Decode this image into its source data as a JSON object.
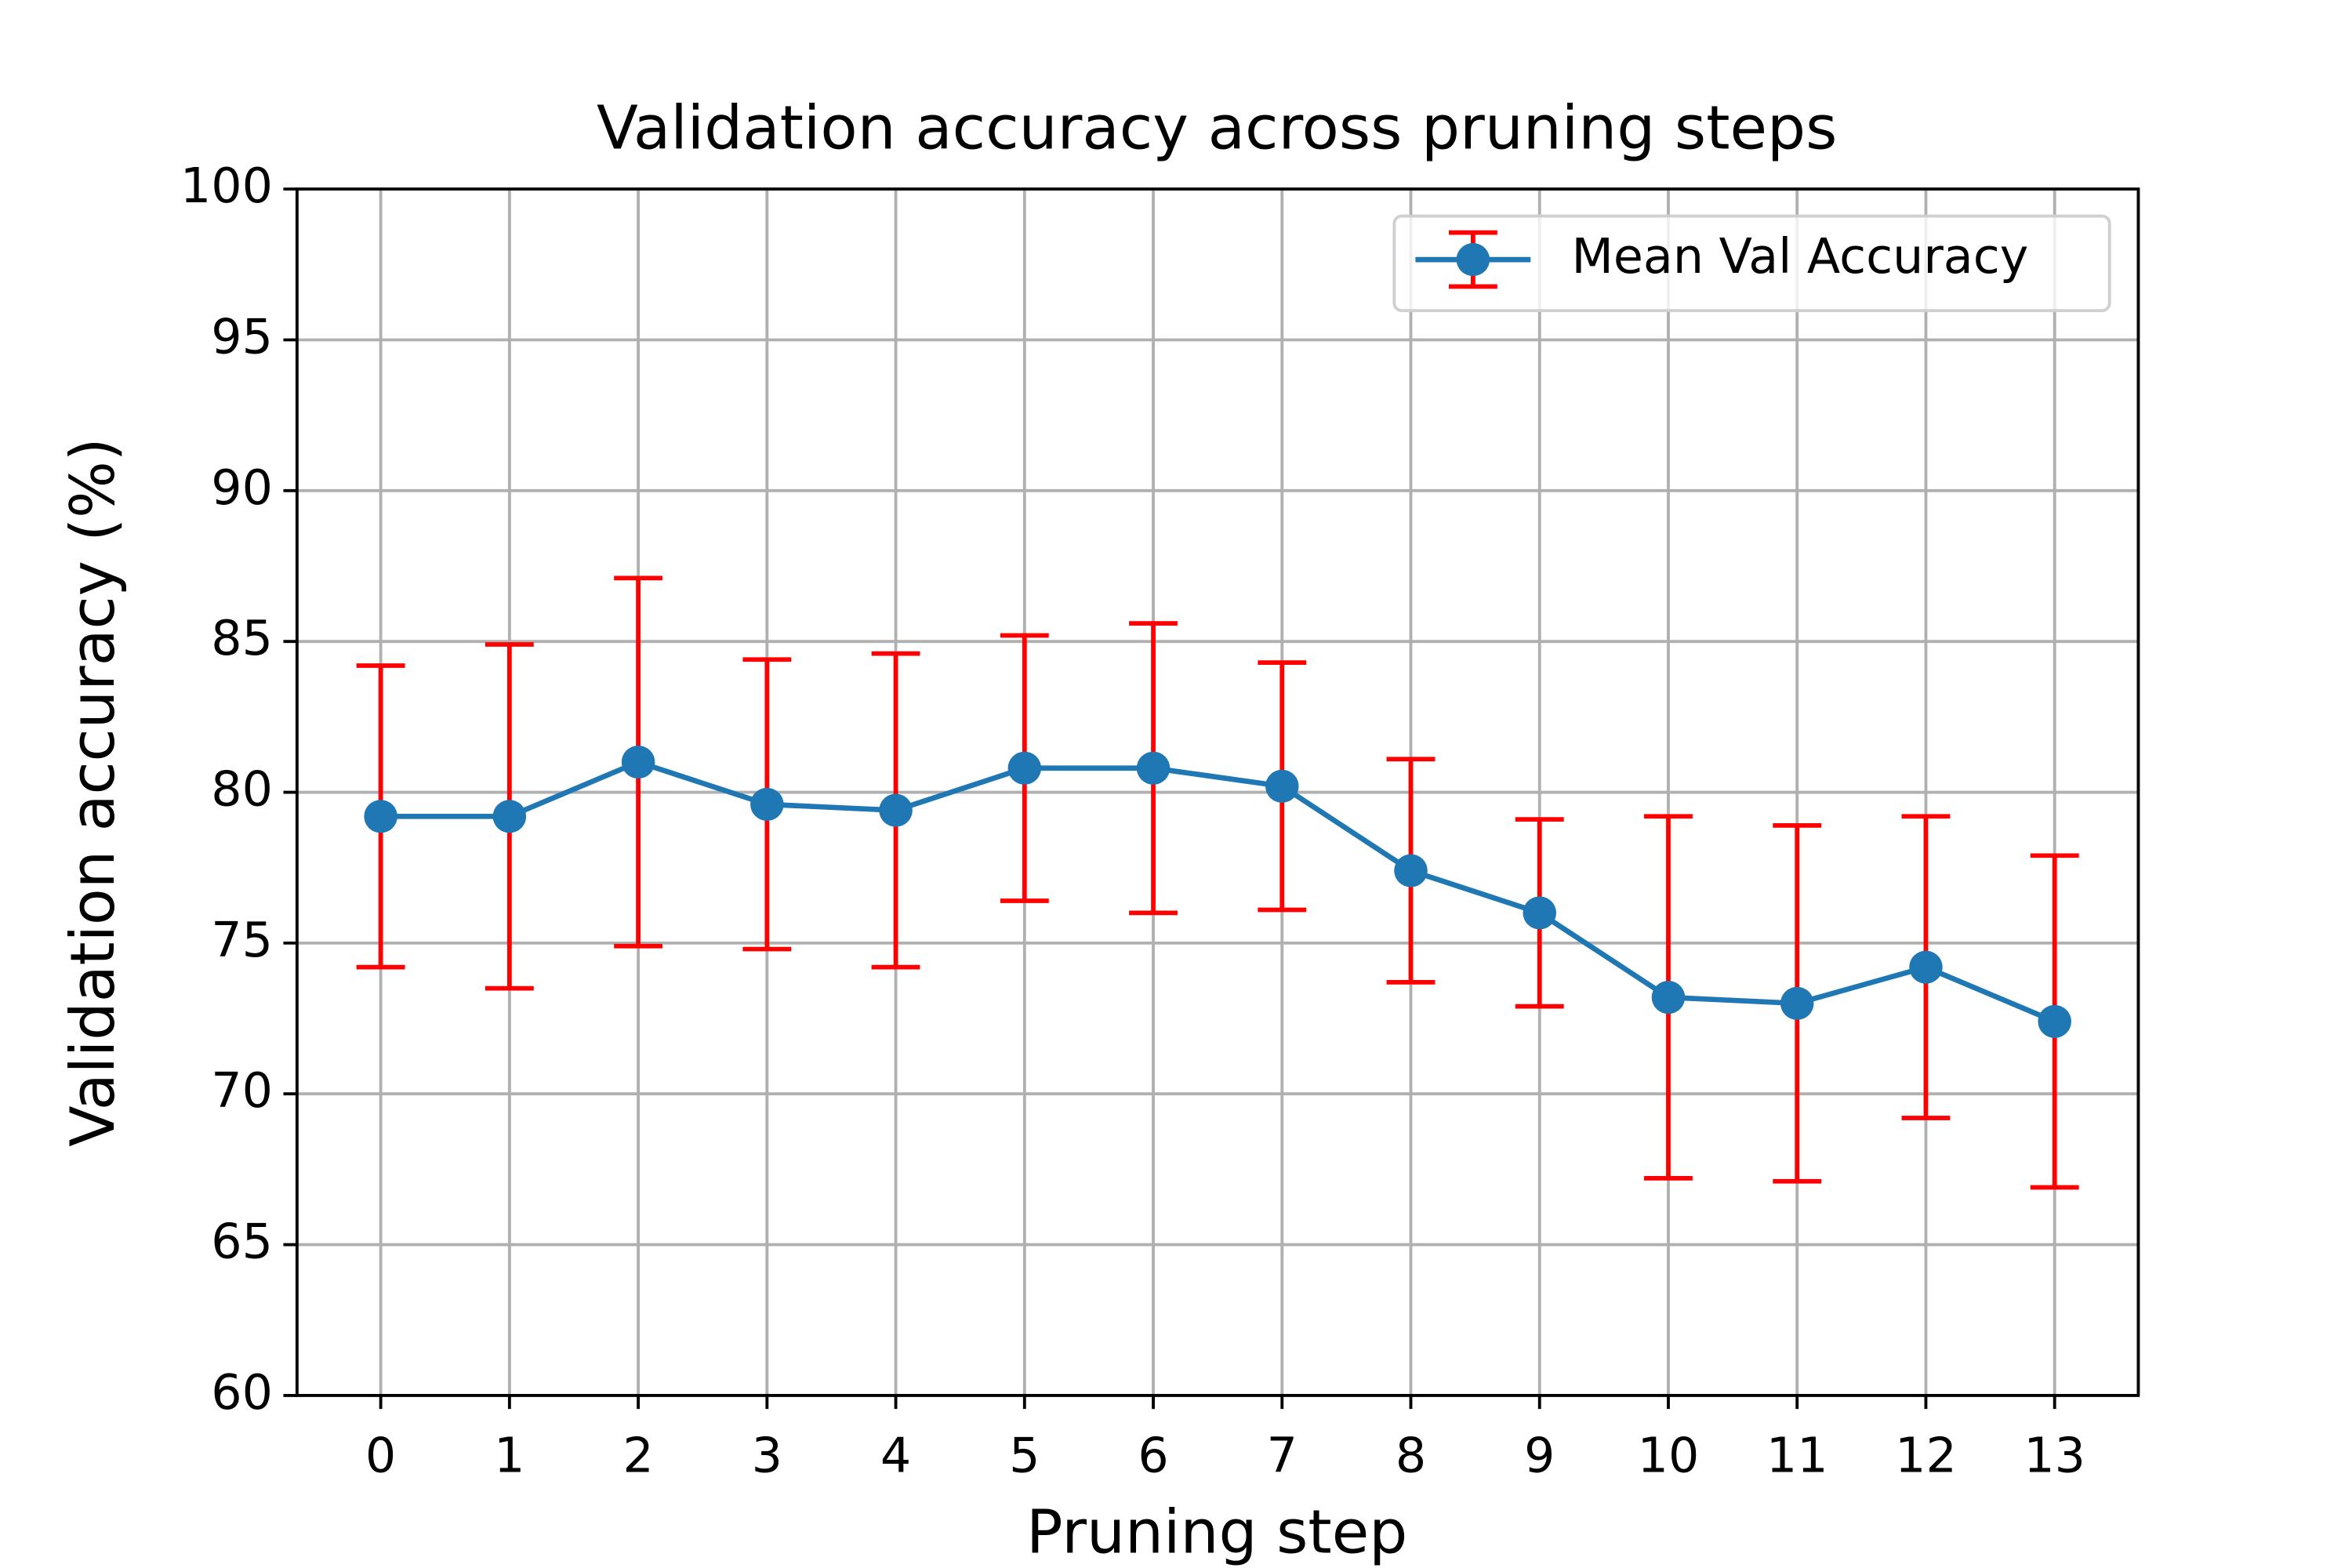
{
  "chart_data": {
    "type": "line",
    "title": "Validation accuracy across pruning steps",
    "x_label": "Pruning step",
    "y_label": "Validation accuracy (%)",
    "x": [
      0,
      1,
      2,
      3,
      4,
      5,
      6,
      7,
      8,
      9,
      10,
      11,
      12,
      13
    ],
    "series": [
      {
        "name": "Mean Val Accuracy",
        "color": "#1f77b4",
        "error_color": "#ff0000",
        "values": [
          79.2,
          79.2,
          81.0,
          79.6,
          79.4,
          80.8,
          80.8,
          80.2,
          77.4,
          76.0,
          73.2,
          73.0,
          74.2,
          72.4
        ],
        "errors": [
          5.0,
          5.7,
          6.1,
          4.8,
          5.2,
          4.4,
          4.8,
          4.1,
          3.7,
          3.1,
          6.0,
          5.9,
          5.0,
          5.5
        ]
      }
    ],
    "xlim": [
      -0.65,
      13.65
    ],
    "xticks": [
      0,
      1,
      2,
      3,
      4,
      5,
      6,
      7,
      8,
      9,
      10,
      11,
      12,
      13
    ],
    "ylim": [
      60,
      100
    ],
    "yticks": [
      60,
      65,
      70,
      75,
      80,
      85,
      90,
      95,
      100
    ],
    "grid": true,
    "legend": "upper right"
  }
}
